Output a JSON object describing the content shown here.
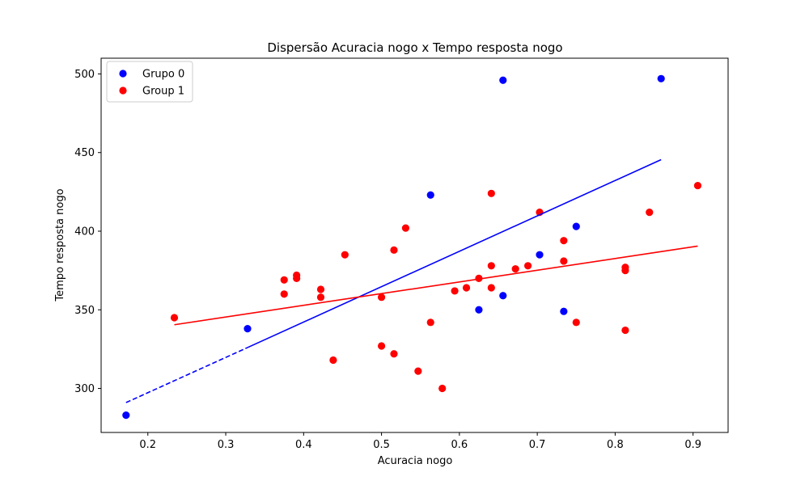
{
  "chart_data": {
    "type": "scatter",
    "title": "Dispersão Acuracia nogo x Tempo resposta nogo",
    "xlabel": "Acuracia nogo",
    "ylabel": "Tempo resposta nogo",
    "xlim": [
      0.14,
      0.945
    ],
    "ylim": [
      272,
      510
    ],
    "xticks": [
      "0.2",
      "0.3",
      "0.4",
      "0.5",
      "0.6",
      "0.7",
      "0.8",
      "0.9"
    ],
    "yticks": [
      "300",
      "350",
      "400",
      "450",
      "500"
    ],
    "grid": false,
    "legend_position": "upper-left",
    "series": [
      {
        "name": "Grupo 0",
        "color": "#0000ff",
        "points": [
          {
            "x": 0.172,
            "y": 283
          },
          {
            "x": 0.328,
            "y": 338
          },
          {
            "x": 0.563,
            "y": 423
          },
          {
            "x": 0.625,
            "y": 350
          },
          {
            "x": 0.656,
            "y": 496
          },
          {
            "x": 0.656,
            "y": 359
          },
          {
            "x": 0.703,
            "y": 385
          },
          {
            "x": 0.734,
            "y": 349
          },
          {
            "x": 0.75,
            "y": 403
          },
          {
            "x": 0.859,
            "y": 497
          }
        ],
        "trend": [
          {
            "x1": 0.172,
            "y1": 291,
            "x2": 0.328,
            "y2": 326,
            "style": "dashed"
          },
          {
            "x1": 0.328,
            "y1": 326,
            "x2": 0.859,
            "y2": 445.5,
            "style": "solid"
          }
        ]
      },
      {
        "name": "Group 1",
        "color": "#ff0000",
        "points": [
          {
            "x": 0.234,
            "y": 345
          },
          {
            "x": 0.375,
            "y": 369
          },
          {
            "x": 0.375,
            "y": 360
          },
          {
            "x": 0.391,
            "y": 372
          },
          {
            "x": 0.391,
            "y": 370
          },
          {
            "x": 0.422,
            "y": 363
          },
          {
            "x": 0.422,
            "y": 358
          },
          {
            "x": 0.438,
            "y": 318
          },
          {
            "x": 0.453,
            "y": 385
          },
          {
            "x": 0.5,
            "y": 327
          },
          {
            "x": 0.5,
            "y": 358
          },
          {
            "x": 0.516,
            "y": 322
          },
          {
            "x": 0.516,
            "y": 388
          },
          {
            "x": 0.531,
            "y": 402
          },
          {
            "x": 0.547,
            "y": 311
          },
          {
            "x": 0.563,
            "y": 342
          },
          {
            "x": 0.578,
            "y": 300
          },
          {
            "x": 0.594,
            "y": 362
          },
          {
            "x": 0.609,
            "y": 364
          },
          {
            "x": 0.625,
            "y": 370
          },
          {
            "x": 0.641,
            "y": 424
          },
          {
            "x": 0.641,
            "y": 378
          },
          {
            "x": 0.641,
            "y": 364
          },
          {
            "x": 0.672,
            "y": 376
          },
          {
            "x": 0.688,
            "y": 378
          },
          {
            "x": 0.703,
            "y": 412
          },
          {
            "x": 0.734,
            "y": 394
          },
          {
            "x": 0.734,
            "y": 381
          },
          {
            "x": 0.75,
            "y": 342
          },
          {
            "x": 0.813,
            "y": 377
          },
          {
            "x": 0.813,
            "y": 375
          },
          {
            "x": 0.813,
            "y": 337
          },
          {
            "x": 0.844,
            "y": 412
          },
          {
            "x": 0.906,
            "y": 429
          }
        ],
        "trend": [
          {
            "x1": 0.234,
            "y1": 340.5,
            "x2": 0.906,
            "y2": 390.5,
            "style": "solid"
          }
        ]
      }
    ]
  }
}
